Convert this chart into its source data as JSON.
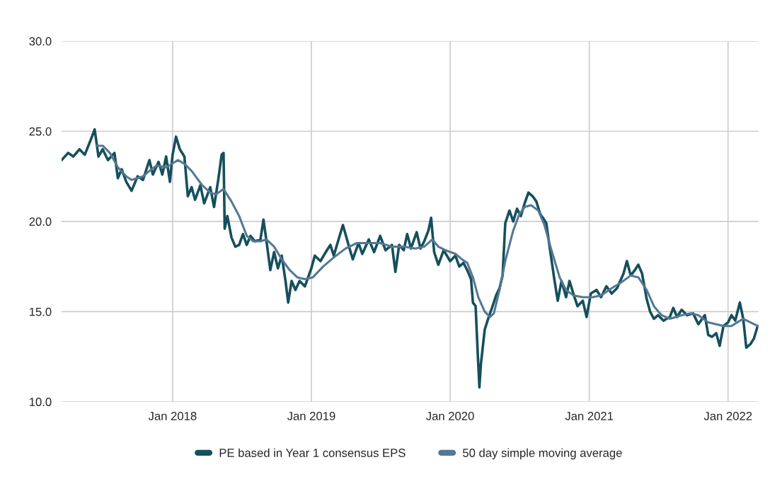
{
  "chart_data": {
    "type": "line",
    "xlim": [
      "2017-03-15",
      "2022-03-22"
    ],
    "xticks": [
      {
        "value": "2018-01-01",
        "label": "Jan 2018"
      },
      {
        "value": "2019-01-01",
        "label": "Jan 2019"
      },
      {
        "value": "2020-01-01",
        "label": "Jan 2020"
      },
      {
        "value": "2021-01-01",
        "label": "Jan 2021"
      },
      {
        "value": "2022-01-01",
        "label": "Jan 2022"
      }
    ],
    "ylim": [
      10,
      30
    ],
    "yticks": [
      {
        "value": 10,
        "label": "10.0"
      },
      {
        "value": 15,
        "label": "15.0"
      },
      {
        "value": 20,
        "label": "20.0"
      },
      {
        "value": 25,
        "label": "25.0"
      },
      {
        "value": 30,
        "label": "30.0"
      }
    ],
    "grid": true,
    "legend": "bottom",
    "marker": "none",
    "line_style": "solid",
    "series": [
      {
        "name": "PE based in Year 1 consensus EPS",
        "color": "#164f5c",
        "x": [
          "2017-03-15",
          "2017-04-01",
          "2017-04-15",
          "2017-05-01",
          "2017-05-15",
          "2017-06-01",
          "2017-06-10",
          "2017-06-20",
          "2017-07-01",
          "2017-07-15",
          "2017-08-01",
          "2017-08-10",
          "2017-08-20",
          "2017-09-01",
          "2017-09-15",
          "2017-10-01",
          "2017-10-15",
          "2017-11-01",
          "2017-11-10",
          "2017-11-25",
          "2017-12-05",
          "2017-12-15",
          "2017-12-25",
          "2018-01-01",
          "2018-01-10",
          "2018-01-20",
          "2018-02-01",
          "2018-02-10",
          "2018-02-20",
          "2018-03-01",
          "2018-03-15",
          "2018-03-25",
          "2018-04-10",
          "2018-04-20",
          "2018-05-01",
          "2018-05-10",
          "2018-05-15",
          "2018-05-18",
          "2018-05-25",
          "2018-06-05",
          "2018-06-15",
          "2018-06-25",
          "2018-07-05",
          "2018-07-15",
          "2018-07-25",
          "2018-08-05",
          "2018-08-20",
          "2018-08-28",
          "2018-09-05",
          "2018-09-15",
          "2018-09-25",
          "2018-10-05",
          "2018-10-15",
          "2018-10-25",
          "2018-11-01",
          "2018-11-10",
          "2018-11-20",
          "2018-12-01",
          "2018-12-15",
          "2019-01-01",
          "2019-01-10",
          "2019-01-25",
          "2019-02-05",
          "2019-02-20",
          "2019-03-01",
          "2019-03-15",
          "2019-03-25",
          "2019-04-10",
          "2019-04-20",
          "2019-05-05",
          "2019-05-15",
          "2019-06-01",
          "2019-06-15",
          "2019-07-01",
          "2019-07-15",
          "2019-08-01",
          "2019-08-10",
          "2019-08-20",
          "2019-09-01",
          "2019-09-10",
          "2019-09-20",
          "2019-10-05",
          "2019-10-15",
          "2019-10-25",
          "2019-11-05",
          "2019-11-12",
          "2019-11-20",
          "2019-12-01",
          "2019-12-15",
          "2020-01-01",
          "2020-01-15",
          "2020-01-25",
          "2020-02-05",
          "2020-02-15",
          "2020-02-25",
          "2020-03-01",
          "2020-03-08",
          "2020-03-14",
          "2020-03-18",
          "2020-03-22",
          "2020-04-01",
          "2020-04-10",
          "2020-04-20",
          "2020-05-01",
          "2020-05-10",
          "2020-05-18",
          "2020-05-25",
          "2020-06-05",
          "2020-06-15",
          "2020-06-25",
          "2020-07-05",
          "2020-07-15",
          "2020-07-25",
          "2020-08-05",
          "2020-08-15",
          "2020-08-25",
          "2020-09-01",
          "2020-09-10",
          "2020-09-20",
          "2020-10-01",
          "2020-10-10",
          "2020-10-20",
          "2020-11-01",
          "2020-11-10",
          "2020-11-20",
          "2020-12-01",
          "2020-12-15",
          "2020-12-25",
          "2021-01-05",
          "2021-01-20",
          "2021-02-01",
          "2021-02-15",
          "2021-03-01",
          "2021-03-15",
          "2021-04-01",
          "2021-04-10",
          "2021-04-20",
          "2021-05-01",
          "2021-05-10",
          "2021-05-20",
          "2021-06-01",
          "2021-06-10",
          "2021-06-20",
          "2021-07-01",
          "2021-07-15",
          "2021-08-01",
          "2021-08-10",
          "2021-08-20",
          "2021-09-01",
          "2021-09-15",
          "2021-10-01",
          "2021-10-15",
          "2021-11-01",
          "2021-11-10",
          "2021-11-20",
          "2021-12-01",
          "2021-12-10",
          "2021-12-20",
          "2022-01-01",
          "2022-01-10",
          "2022-01-20",
          "2022-02-01",
          "2022-02-10",
          "2022-02-18",
          "2022-03-01",
          "2022-03-10",
          "2022-03-20"
        ],
        "values": [
          23.4,
          23.8,
          23.6,
          24.0,
          23.7,
          24.6,
          25.1,
          23.6,
          24.0,
          23.4,
          23.8,
          22.4,
          22.9,
          22.2,
          21.7,
          22.5,
          22.3,
          23.4,
          22.6,
          23.3,
          22.6,
          23.6,
          22.2,
          23.7,
          24.7,
          24.0,
          23.6,
          21.4,
          21.9,
          21.2,
          22.0,
          21.0,
          21.9,
          20.8,
          22.3,
          23.7,
          23.8,
          19.6,
          20.3,
          19.1,
          18.6,
          18.7,
          19.3,
          18.7,
          19.2,
          18.9,
          19.0,
          20.1,
          18.9,
          17.3,
          18.3,
          17.4,
          18.1,
          16.7,
          15.5,
          16.7,
          16.2,
          16.7,
          16.4,
          17.4,
          18.1,
          17.8,
          18.2,
          18.7,
          18.1,
          19.1,
          19.8,
          18.6,
          17.9,
          18.8,
          18.2,
          19.0,
          18.3,
          19.2,
          18.4,
          18.7,
          17.2,
          18.7,
          18.4,
          19.3,
          18.5,
          19.4,
          18.5,
          18.9,
          19.5,
          20.2,
          18.3,
          17.6,
          18.4,
          17.8,
          18.1,
          17.5,
          17.7,
          17.3,
          16.8,
          15.5,
          15.3,
          12.5,
          10.8,
          12.1,
          14.0,
          14.6,
          15.2,
          15.9,
          16.3,
          17.0,
          19.9,
          20.6,
          20.0,
          20.7,
          20.3,
          21.0,
          21.6,
          21.4,
          21.1,
          20.4,
          20.2,
          19.9,
          18.4,
          16.8,
          15.6,
          16.7,
          15.8,
          16.7,
          16.0,
          15.3,
          15.6,
          14.7,
          16.0,
          16.2,
          15.8,
          16.4,
          16.0,
          16.3,
          17.1,
          17.8,
          17.0,
          17.3,
          17.6,
          17.1,
          15.7,
          15.0,
          14.6,
          14.8,
          14.5,
          14.7,
          15.2,
          14.7,
          15.1,
          14.8,
          14.9,
          14.3,
          14.8,
          13.7,
          13.6,
          13.8,
          13.1,
          14.2,
          14.4,
          14.8,
          14.5,
          15.5,
          14.6,
          13.0,
          13.2,
          13.5,
          14.2
        ]
      },
      {
        "name": "50 day simple moving average",
        "color": "#537895",
        "x": [
          "2017-06-15",
          "2017-07-01",
          "2017-07-20",
          "2017-08-10",
          "2017-09-01",
          "2017-09-15",
          "2017-10-15",
          "2017-11-01",
          "2017-11-20",
          "2017-12-15",
          "2018-01-15",
          "2018-02-01",
          "2018-02-20",
          "2018-03-20",
          "2018-04-10",
          "2018-04-25",
          "2018-05-15",
          "2018-06-05",
          "2018-06-25",
          "2018-07-15",
          "2018-08-01",
          "2018-08-20",
          "2018-09-05",
          "2018-09-25",
          "2018-10-15",
          "2018-11-05",
          "2018-11-25",
          "2018-12-15",
          "2019-01-05",
          "2019-02-01",
          "2019-03-01",
          "2019-04-01",
          "2019-05-01",
          "2019-06-01",
          "2019-07-01",
          "2019-08-01",
          "2019-09-01",
          "2019-10-01",
          "2019-10-25",
          "2019-11-15",
          "2019-12-01",
          "2019-12-20",
          "2020-01-15",
          "2020-02-01",
          "2020-02-15",
          "2020-03-01",
          "2020-03-15",
          "2020-04-01",
          "2020-04-15",
          "2020-04-25",
          "2020-05-10",
          "2020-05-25",
          "2020-06-15",
          "2020-07-01",
          "2020-07-15",
          "2020-08-01",
          "2020-08-20",
          "2020-09-05",
          "2020-09-25",
          "2020-10-15",
          "2020-11-01",
          "2020-11-20",
          "2020-12-15",
          "2021-01-10",
          "2021-02-01",
          "2021-03-01",
          "2021-03-25",
          "2021-04-20",
          "2021-05-10",
          "2021-06-01",
          "2021-06-20",
          "2021-07-10",
          "2021-08-01",
          "2021-09-01",
          "2021-09-25",
          "2021-10-15",
          "2021-11-10",
          "2021-12-01",
          "2021-12-20",
          "2022-01-10",
          "2022-01-25",
          "2022-02-10",
          "2022-03-01",
          "2022-03-20"
        ],
        "values": [
          24.2,
          24.2,
          23.8,
          23.0,
          22.5,
          22.3,
          22.5,
          22.8,
          23.1,
          23.0,
          23.4,
          23.2,
          22.8,
          22.0,
          21.6,
          21.5,
          21.8,
          21.1,
          20.3,
          19.2,
          18.9,
          18.9,
          19.0,
          18.6,
          17.9,
          17.3,
          16.9,
          16.8,
          16.9,
          17.5,
          18.0,
          18.5,
          18.8,
          18.8,
          18.8,
          18.6,
          18.6,
          18.5,
          18.6,
          19.0,
          18.6,
          18.4,
          18.2,
          17.9,
          17.7,
          16.9,
          15.8,
          15.0,
          14.7,
          14.9,
          16.2,
          17.8,
          19.5,
          20.4,
          20.8,
          20.9,
          20.6,
          19.8,
          18.3,
          16.9,
          16.2,
          15.9,
          15.8,
          15.8,
          15.9,
          16.3,
          16.6,
          17.0,
          16.9,
          16.2,
          15.3,
          14.8,
          14.6,
          14.8,
          14.9,
          14.8,
          14.4,
          14.3,
          14.2,
          14.2,
          14.4,
          14.6,
          14.4,
          14.2
        ]
      }
    ]
  }
}
